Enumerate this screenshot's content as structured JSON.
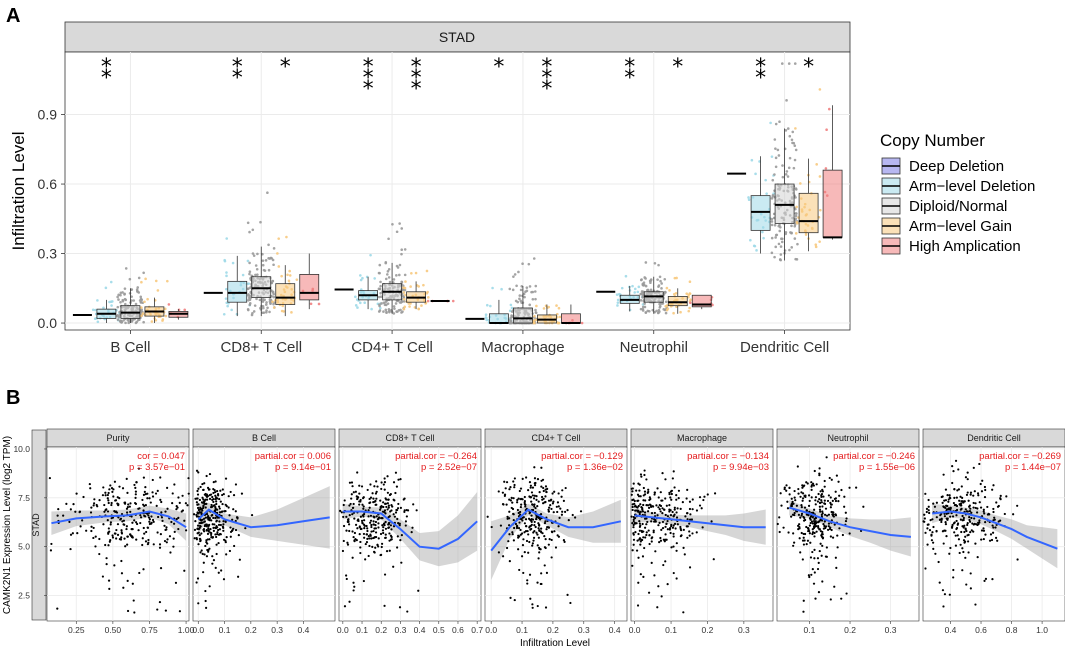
{
  "figure": {
    "panel_a_label": "A",
    "panel_b_label": "B"
  },
  "chart_data": [
    {
      "type": "box",
      "panel": "A",
      "facet_title": "STAD",
      "ylabel": "Infiltration Level",
      "xlabel": "",
      "ylim": [
        -0.03,
        1.17
      ],
      "yticks": [
        0.0,
        0.3,
        0.6,
        0.9
      ],
      "ytick_labels": [
        "0.0",
        "0.3",
        "0.6",
        "0.9"
      ],
      "categories": [
        "B Cell",
        "CD8+ T Cell",
        "CD4+ T Cell",
        "Macrophage",
        "Neutrophil",
        "Dendritic Cell"
      ],
      "significance": {
        "B Cell": [
          "**",
          "",
          "",
          ""
        ],
        "CD8+ T Cell": [
          "**",
          "",
          "*",
          ""
        ],
        "CD4+ T Cell": [
          "***",
          "",
          "***",
          ""
        ],
        "Macrophage": [
          "*",
          "",
          "***",
          ""
        ],
        "Neutrophil": [
          "**",
          "",
          "*",
          ""
        ],
        "Dendritic Cell": [
          "**",
          "",
          "*",
          ""
        ]
      },
      "legend_title": "Copy Number",
      "series": [
        {
          "name": "Deep Deletion",
          "color": "#7b7be6",
          "values": [
            [
              0.035,
              0.035,
              0.035,
              0.035,
              0.035
            ],
            [
              0.13,
              0.13,
              0.13,
              0.13,
              0.13
            ],
            [
              0.145,
              0.145,
              0.145,
              0.145,
              0.145
            ],
            [
              0.018,
              0.018,
              0.018,
              0.018,
              0.018
            ],
            [
              0.135,
              0.135,
              0.135,
              0.135,
              0.135
            ],
            [
              0.645,
              0.645,
              0.645,
              0.645,
              0.645
            ]
          ]
        },
        {
          "name": "Arm−level Deletion",
          "color": "#9fd9e8",
          "values": [
            [
              0.0,
              0.02,
              0.04,
              0.06,
              0.1
            ],
            [
              0.03,
              0.09,
              0.13,
              0.18,
              0.29
            ],
            [
              0.06,
              0.1,
              0.12,
              0.14,
              0.2
            ],
            [
              0.0,
              0.0,
              0.0,
              0.04,
              0.1
            ],
            [
              0.05,
              0.085,
              0.1,
              0.12,
              0.16
            ],
            [
              0.3,
              0.4,
              0.48,
              0.55,
              0.72
            ]
          ]
        },
        {
          "name": "Diploid/Normal",
          "color": "#d3d3d3",
          "values": [
            [
              0.0,
              0.02,
              0.045,
              0.075,
              0.15
            ],
            [
              0.03,
              0.11,
              0.15,
              0.2,
              0.33
            ],
            [
              0.04,
              0.1,
              0.135,
              0.17,
              0.26
            ],
            [
              0.0,
              0.0,
              0.02,
              0.065,
              0.16
            ],
            [
              0.04,
              0.09,
              0.115,
              0.135,
              0.2
            ],
            [
              0.27,
              0.43,
              0.51,
              0.6,
              0.84
            ]
          ]
        },
        {
          "name": "Arm−level Gain",
          "color": "#f7c97e",
          "values": [
            [
              0.0,
              0.03,
              0.05,
              0.07,
              0.11
            ],
            [
              0.03,
              0.08,
              0.11,
              0.17,
              0.25
            ],
            [
              0.06,
              0.09,
              0.11,
              0.135,
              0.18
            ],
            [
              0.0,
              0.0,
              0.015,
              0.035,
              0.08
            ],
            [
              0.04,
              0.075,
              0.09,
              0.115,
              0.15
            ],
            [
              0.31,
              0.39,
              0.44,
              0.56,
              0.71
            ]
          ]
        },
        {
          "name": "High Amplication",
          "color": "#f08080",
          "values": [
            [
              0.015,
              0.025,
              0.04,
              0.05,
              0.06
            ],
            [
              0.06,
              0.1,
              0.13,
              0.21,
              0.3
            ],
            [
              0.095,
              0.095,
              0.095,
              0.095,
              0.095
            ],
            [
              0.0,
              0.0,
              0.0,
              0.04,
              0.08
            ],
            [
              0.06,
              0.07,
              0.08,
              0.12,
              0.12
            ],
            [
              0.36,
              0.37,
              0.37,
              0.66,
              0.94
            ]
          ]
        }
      ]
    },
    {
      "type": "scatter",
      "panel": "B",
      "row_label": "STAD",
      "ylabel": "CAMK2N1 Expression Level (log2 TPM)",
      "xlabel": "Infiltration Level",
      "ylim": [
        1.2,
        10.1
      ],
      "yticks": [
        2.5,
        5.0,
        7.5,
        10.0
      ],
      "ytick_labels": [
        "2.5",
        "5.0",
        "7.5",
        "10.0"
      ],
      "panels": [
        {
          "title": "Purity",
          "cor_label": "cor = 0.047",
          "p_label": "p = 3.57e−01",
          "xlim": [
            0.05,
            1.02
          ],
          "xticks": [
            0.25,
            0.5,
            0.75,
            1.0
          ],
          "xtick_labels": [
            "0.25",
            "0.50",
            "0.75",
            "1.00"
          ],
          "fit_x": [
            0.08,
            0.25,
            0.45,
            0.6,
            0.75,
            0.88,
            1.0
          ],
          "fit_y": [
            6.2,
            6.45,
            6.55,
            6.6,
            6.8,
            6.55,
            6.0
          ],
          "band": [
            0.6,
            0.4,
            0.3,
            0.3,
            0.3,
            0.4,
            0.7
          ],
          "pt_center": 0.62,
          "pt_spread": 0.22
        },
        {
          "title": "B Cell",
          "cor_label": "partial.cor = 0.006",
          "p_label": "p = 9.14e−01",
          "xlim": [
            -0.02,
            0.52
          ],
          "xticks": [
            0.0,
            0.1,
            0.2,
            0.3,
            0.4
          ],
          "xtick_labels": [
            "0.0",
            "0.1",
            "0.2",
            "0.3",
            "0.4"
          ],
          "fit_x": [
            0.0,
            0.04,
            0.1,
            0.2,
            0.3,
            0.4,
            0.5
          ],
          "fit_y": [
            6.4,
            6.9,
            6.4,
            6.0,
            6.1,
            6.3,
            6.5
          ],
          "band": [
            0.8,
            0.35,
            0.3,
            0.5,
            0.8,
            1.2,
            1.6
          ],
          "pt_center": 0.05,
          "pt_spread": 0.05
        },
        {
          "title": "CD8+ T Cell",
          "cor_label": "partial.cor = −0.264",
          "p_label": "p = 2.52e−07",
          "xlim": [
            -0.02,
            0.72
          ],
          "xticks": [
            0.0,
            0.1,
            0.2,
            0.3,
            0.4,
            0.5,
            0.6,
            0.7
          ],
          "xtick_labels": [
            "0.0",
            "0.1",
            "0.2",
            "0.3",
            "0.4",
            "0.5",
            "0.6",
            "0.7"
          ],
          "fit_x": [
            0.0,
            0.1,
            0.2,
            0.3,
            0.4,
            0.5,
            0.6,
            0.7
          ],
          "fit_y": [
            6.8,
            6.8,
            6.7,
            5.9,
            5.0,
            4.9,
            5.4,
            6.3
          ],
          "band": [
            0.4,
            0.25,
            0.3,
            0.5,
            0.7,
            0.9,
            1.2,
            1.5
          ],
          "pt_center": 0.16,
          "pt_spread": 0.1
        },
        {
          "title": "CD4+ T Cell",
          "cor_label": "partial.cor = −0.129",
          "p_label": "p = 1.36e−02",
          "xlim": [
            -0.02,
            0.44
          ],
          "xticks": [
            0.0,
            0.1,
            0.2,
            0.3,
            0.4
          ],
          "xtick_labels": [
            "0.0",
            "0.1",
            "0.2",
            "0.3",
            "0.4"
          ],
          "fit_x": [
            0.0,
            0.06,
            0.12,
            0.18,
            0.25,
            0.33,
            0.42
          ],
          "fit_y": [
            4.8,
            6.0,
            6.9,
            6.4,
            6.0,
            6.0,
            6.3
          ],
          "band": [
            1.5,
            0.6,
            0.3,
            0.3,
            0.5,
            0.8,
            1.1
          ],
          "pt_center": 0.13,
          "pt_spread": 0.06
        },
        {
          "title": "Macrophage",
          "cor_label": "partial.cor = −0.134",
          "p_label": "p = 9.94e−03",
          "xlim": [
            -0.01,
            0.38
          ],
          "xticks": [
            0.0,
            0.1,
            0.2,
            0.3
          ],
          "xtick_labels": [
            "0.0",
            "0.1",
            "0.2",
            "0.3"
          ],
          "fit_x": [
            0.0,
            0.05,
            0.1,
            0.15,
            0.2,
            0.25,
            0.3,
            0.36
          ],
          "fit_y": [
            6.6,
            6.5,
            6.4,
            6.3,
            6.2,
            6.1,
            6.0,
            6.0
          ],
          "band": [
            0.35,
            0.25,
            0.25,
            0.3,
            0.4,
            0.5,
            0.7,
            0.9
          ],
          "pt_center": 0.06,
          "pt_spread": 0.06
        },
        {
          "title": "Neutrophil",
          "cor_label": "partial.cor = −0.246",
          "p_label": "p = 1.55e−06",
          "xlim": [
            0.02,
            0.37
          ],
          "xticks": [
            0.1,
            0.2,
            0.3
          ],
          "xtick_labels": [
            "0.1",
            "0.2",
            "0.3"
          ],
          "fit_x": [
            0.05,
            0.1,
            0.15,
            0.2,
            0.25,
            0.3,
            0.35
          ],
          "fit_y": [
            7.0,
            6.7,
            6.3,
            6.0,
            5.8,
            5.6,
            5.5
          ],
          "band": [
            0.4,
            0.25,
            0.3,
            0.45,
            0.6,
            0.8,
            1.0
          ],
          "pt_center": 0.11,
          "pt_spread": 0.04
        },
        {
          "title": "Dendritic Cell",
          "cor_label": "partial.cor = −0.269",
          "p_label": "p = 1.44e−07",
          "xlim": [
            0.22,
            1.15
          ],
          "xticks": [
            0.4,
            0.6,
            0.8,
            1.0
          ],
          "xtick_labels": [
            "0.4",
            "0.6",
            "0.8",
            "1.0"
          ],
          "fit_x": [
            0.28,
            0.4,
            0.5,
            0.6,
            0.7,
            0.8,
            0.9,
            1.0,
            1.1
          ],
          "fit_y": [
            6.7,
            6.8,
            6.7,
            6.5,
            6.2,
            5.9,
            5.5,
            5.2,
            4.9
          ],
          "band": [
            0.5,
            0.3,
            0.3,
            0.35,
            0.4,
            0.5,
            0.6,
            0.8,
            1.0
          ],
          "pt_center": 0.5,
          "pt_spread": 0.14
        }
      ]
    }
  ]
}
